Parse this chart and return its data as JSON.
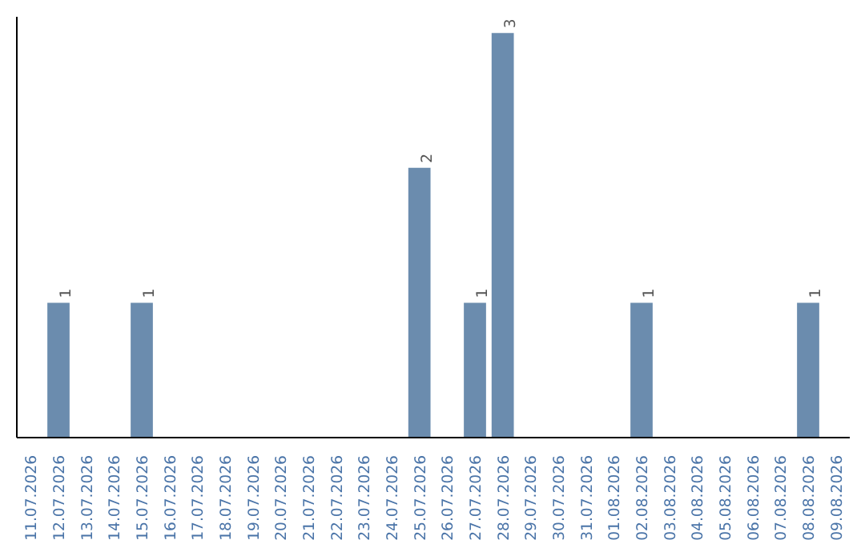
{
  "chart_data": {
    "type": "bar",
    "categories": [
      "11.07.2026",
      "12.07.2026",
      "13.07.2026",
      "14.07.2026",
      "15.07.2026",
      "16.07.2026",
      "17.07.2026",
      "18.07.2026",
      "19.07.2026",
      "20.07.2026",
      "21.07.2026",
      "22.07.2026",
      "23.07.2026",
      "24.07.2026",
      "25.07.2026",
      "26.07.2026",
      "27.07.2026",
      "28.07.2026",
      "29.07.2026",
      "30.07.2026",
      "31.07.2026",
      "01.08.2026",
      "02.08.2026",
      "03.08.2026",
      "04.08.2026",
      "05.08.2026",
      "06.08.2026",
      "07.08.2026",
      "08.08.2026",
      "09.08.2026"
    ],
    "values": [
      0,
      1,
      0,
      0,
      1,
      0,
      0,
      0,
      0,
      0,
      0,
      0,
      0,
      0,
      2,
      0,
      1,
      3,
      0,
      0,
      0,
      0,
      1,
      0,
      0,
      0,
      0,
      0,
      1,
      0
    ],
    "value_labels": [
      null,
      "1",
      null,
      null,
      "1",
      null,
      null,
      null,
      null,
      null,
      null,
      null,
      null,
      null,
      "2",
      null,
      "1",
      "3",
      null,
      null,
      null,
      null,
      "1",
      null,
      null,
      null,
      null,
      null,
      "1",
      null
    ],
    "color": "#6b8cae",
    "grid": false
  }
}
